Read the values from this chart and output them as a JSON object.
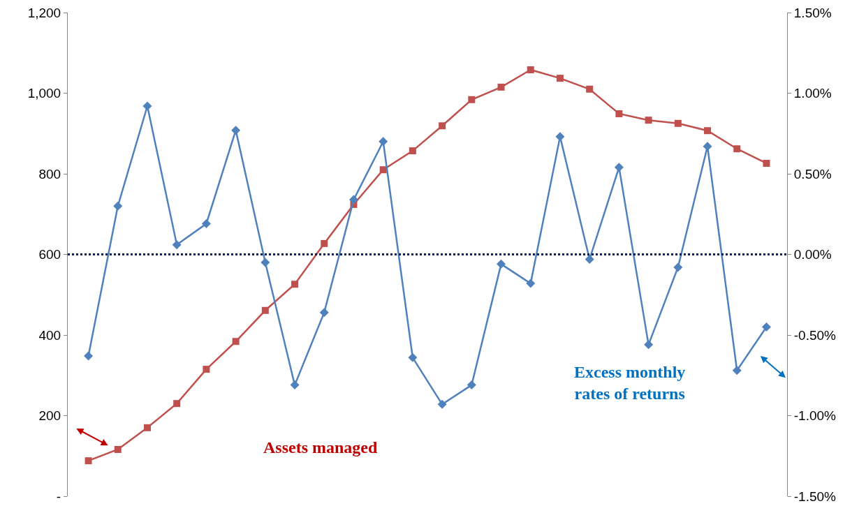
{
  "chart_data": {
    "type": "line",
    "categories": [
      null,
      null,
      null,
      null,
      null,
      null,
      null,
      null,
      null,
      null,
      null,
      null,
      null,
      null,
      null,
      null,
      null,
      null,
      null,
      null,
      null,
      null,
      null,
      null
    ],
    "series": [
      {
        "color": "#c0504d",
        "marker": "square",
        "values": [
          88,
          116,
          170,
          230,
          315,
          384,
          461,
          526,
          627,
          724,
          810,
          857,
          919,
          984,
          1015,
          1058,
          1037,
          1010,
          949,
          933,
          925,
          907,
          862,
          826
        ]
      },
      {
        "color": "#4f81bd",
        "marker": "diamond",
        "axis": "y2",
        "values": [
          -0.63,
          0.3,
          0.92,
          0.06,
          0.19,
          0.77,
          -0.05,
          -0.81,
          -0.36,
          0.34,
          0.7,
          -0.64,
          -0.93,
          -0.81,
          -0.06,
          -0.18,
          0.73,
          -0.03,
          0.54,
          -0.56,
          -0.08,
          0.67,
          -0.72,
          -0.45
        ]
      }
    ],
    "ylim": [
      0,
      1200
    ],
    "yticks": [
      {
        "value": 0,
        "label": "-"
      },
      200,
      400,
      600,
      800,
      {
        "value": 1000,
        "label": "1,000"
      },
      {
        "value": 1200,
        "label": "1,200"
      }
    ],
    "y2lim": [
      -1.5,
      1.5
    ],
    "y2ticks": [
      {
        "value": -1.5,
        "label": "-1.50%"
      },
      {
        "value": -1,
        "label": "-1.00%"
      },
      {
        "value": -0.5,
        "label": "-0.50%"
      },
      {
        "value": 0,
        "label": "0.00%"
      },
      {
        "value": 0.5,
        "label": "0.50%"
      },
      {
        "value": 1,
        "label": "1.00%"
      },
      {
        "value": 1.5,
        "label": "1.50%"
      }
    ],
    "ref_lines": [
      {
        "axis": "y2",
        "value": 0,
        "color": "#002060",
        "line_style": "dotted"
      }
    ],
    "annotations": [
      "Assets managed",
      "Excess monthly rates of returns"
    ],
    "grid": false,
    "legend": false,
    "line_style": "solid"
  }
}
